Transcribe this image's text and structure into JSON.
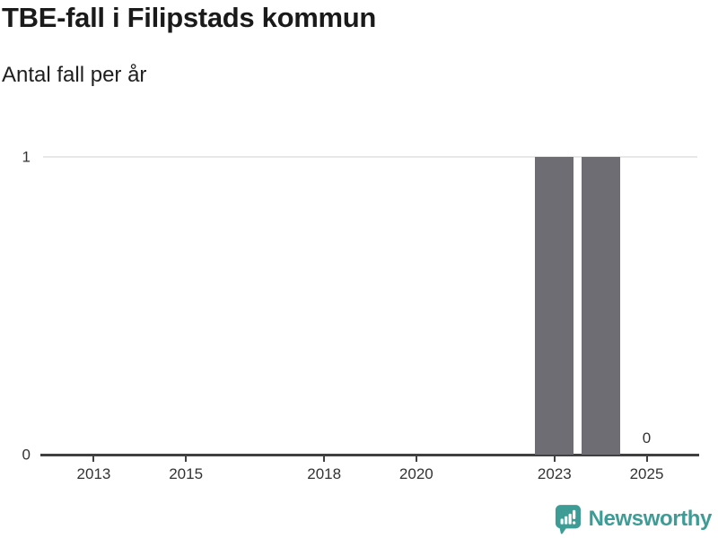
{
  "header": {
    "title": "TBE-fall i Filipstads kommun",
    "subtitle": "Antal fall per år"
  },
  "branding": {
    "name": "Newsworthy",
    "logo_icon": "bar-chart-speech-bubble-icon",
    "accent_color": "#3d9c95"
  },
  "colors": {
    "background": "#ffffff",
    "title_text": "#1a1a1a",
    "tick_label_text": "#333333",
    "axis_line": "#404040",
    "gridline": "#e8e8e8",
    "bar": "#6d6d73"
  },
  "chart_data": {
    "type": "bar",
    "title": "TBE-fall i Filipstads kommun",
    "subtitle": "Antal fall per år",
    "xlabel": "",
    "ylabel": "Antal fall per år",
    "x": [
      2012,
      2013,
      2014,
      2015,
      2016,
      2017,
      2018,
      2019,
      2020,
      2021,
      2022,
      2023,
      2024,
      2025
    ],
    "values": [
      0,
      0,
      0,
      0,
      0,
      0,
      0,
      0,
      0,
      0,
      0,
      1,
      1,
      0
    ],
    "xticks": [
      2013,
      2015,
      2018,
      2020,
      2023,
      2025
    ],
    "yticks": [
      0,
      1
    ],
    "xlim": [
      2011.9,
      2026.1
    ],
    "ylim": [
      0,
      1
    ],
    "bar_width_years": 0.84,
    "bar_color": "#6d6d73",
    "grid": "y-gridlines-only",
    "legend": "none",
    "annotations": [
      {
        "x": 2025,
        "y": 0,
        "text": "0"
      }
    ]
  }
}
